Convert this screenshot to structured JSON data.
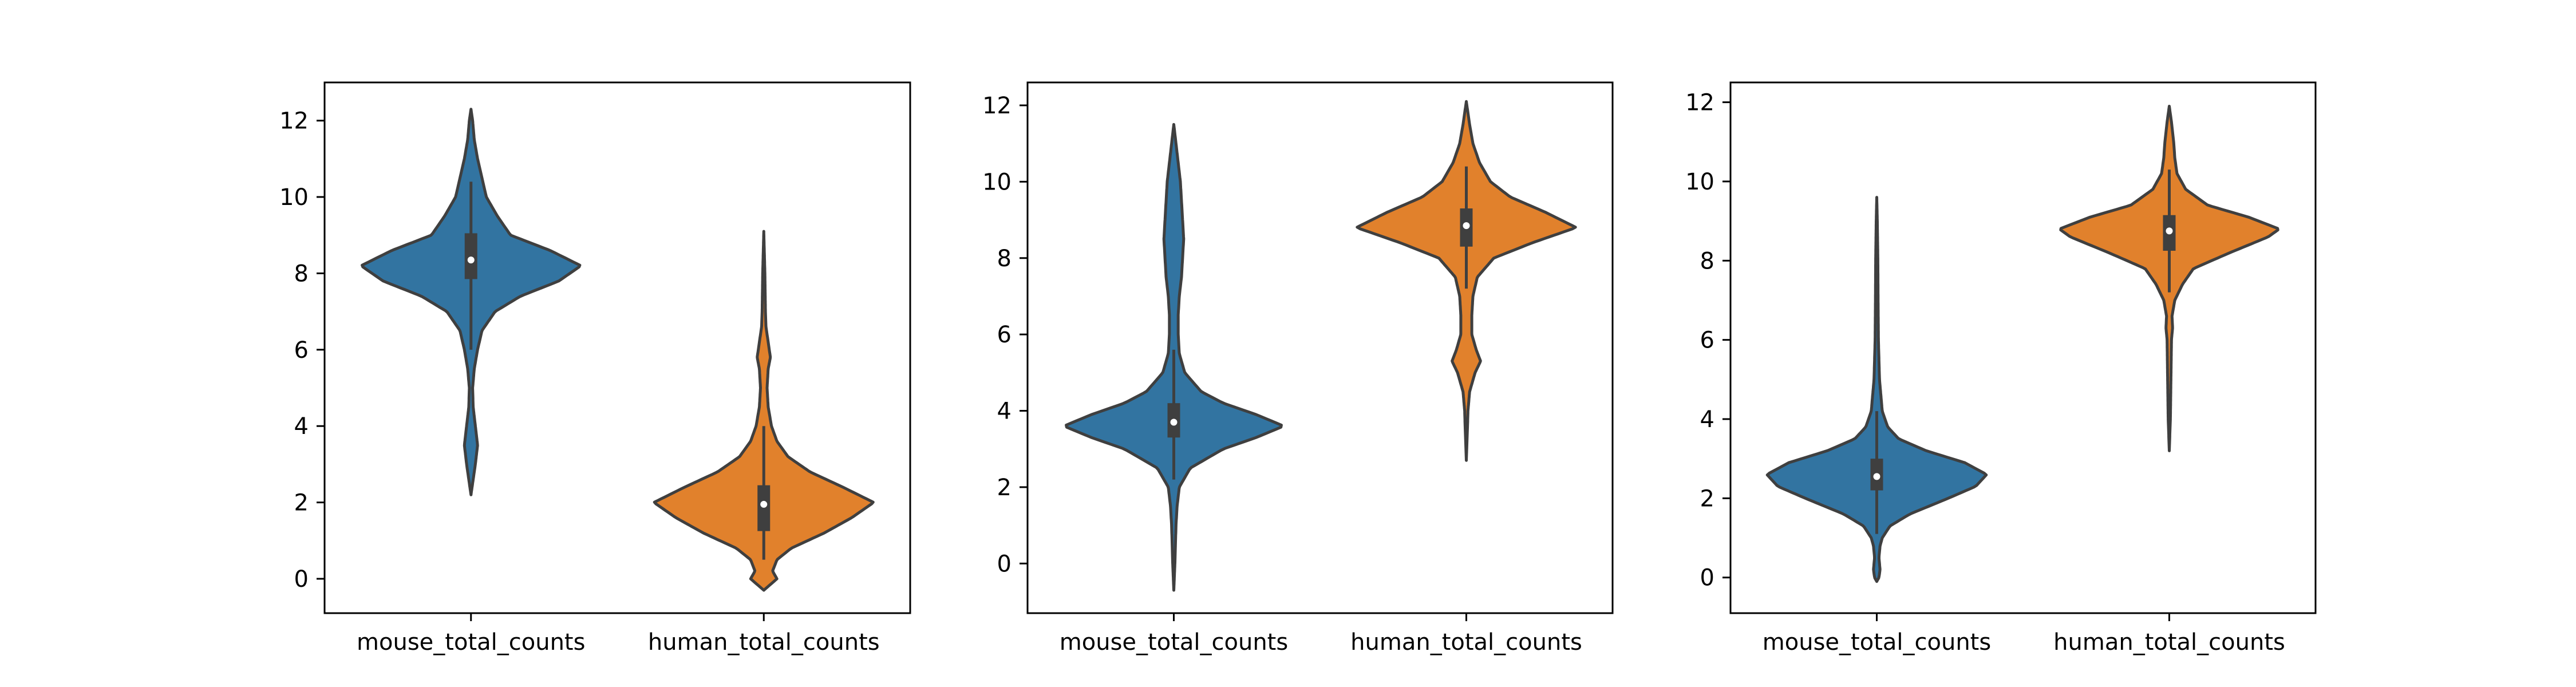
{
  "chart_data": [
    {
      "type": "violin",
      "categories": [
        "mouse_total_counts",
        "human_total_counts"
      ],
      "ylim": [
        -0.9,
        13.0
      ],
      "yticks": [
        0,
        2,
        4,
        6,
        8,
        10,
        12
      ],
      "ytick_labels": [
        "0",
        "2",
        "4",
        "6",
        "8",
        "10",
        "12"
      ],
      "grid": false,
      "series": [
        {
          "colour": "#3274a1",
          "range": [
            2.2,
            12.3
          ],
          "box": {
            "q1": 7.85,
            "median": 8.35,
            "q3": 9.05,
            "whisker_low": 6.0,
            "whisker_high": 10.4
          },
          "profile": [
            [
              2.2,
              0.0
            ],
            [
              2.6,
              0.02
            ],
            [
              3.0,
              0.04
            ],
            [
              3.5,
              0.06
            ],
            [
              4.0,
              0.04
            ],
            [
              4.5,
              0.02
            ],
            [
              5.0,
              0.015
            ],
            [
              5.5,
              0.03
            ],
            [
              6.0,
              0.06
            ],
            [
              6.5,
              0.1
            ],
            [
              7.0,
              0.22
            ],
            [
              7.4,
              0.45
            ],
            [
              7.8,
              0.8
            ],
            [
              8.2,
              1.0
            ],
            [
              8.6,
              0.72
            ],
            [
              9.0,
              0.36
            ],
            [
              9.5,
              0.24
            ],
            [
              10.0,
              0.14
            ],
            [
              10.5,
              0.1
            ],
            [
              11.0,
              0.06
            ],
            [
              11.5,
              0.03
            ],
            [
              12.0,
              0.015
            ],
            [
              12.3,
              0.0
            ]
          ]
        },
        {
          "colour": "#e1812c",
          "range": [
            -0.3,
            9.1
          ],
          "box": {
            "q1": 1.25,
            "median": 1.95,
            "q3": 2.45,
            "whisker_low": 0.5,
            "whisker_high": 4.0
          },
          "profile": [
            [
              -0.3,
              0.0
            ],
            [
              -0.2,
              0.04
            ],
            [
              0.0,
              0.12
            ],
            [
              0.2,
              0.08
            ],
            [
              0.5,
              0.12
            ],
            [
              0.8,
              0.25
            ],
            [
              1.2,
              0.55
            ],
            [
              1.6,
              0.8
            ],
            [
              2.0,
              1.0
            ],
            [
              2.4,
              0.72
            ],
            [
              2.8,
              0.42
            ],
            [
              3.2,
              0.22
            ],
            [
              3.6,
              0.12
            ],
            [
              4.0,
              0.07
            ],
            [
              4.5,
              0.04
            ],
            [
              5.0,
              0.03
            ],
            [
              5.5,
              0.04
            ],
            [
              5.8,
              0.06
            ],
            [
              6.2,
              0.04
            ],
            [
              6.6,
              0.02
            ],
            [
              7.0,
              0.015
            ],
            [
              8.0,
              0.01
            ],
            [
              9.1,
              0.0
            ]
          ]
        }
      ]
    },
    {
      "type": "violin",
      "categories": [
        "mouse_total_counts",
        "human_total_counts"
      ],
      "ylim": [
        -1.3,
        12.6
      ],
      "yticks": [
        0,
        2,
        4,
        6,
        8,
        10,
        12
      ],
      "ytick_labels": [
        "0",
        "2",
        "4",
        "6",
        "8",
        "10",
        "12"
      ],
      "grid": false,
      "series": [
        {
          "colour": "#3274a1",
          "range": [
            -0.7,
            11.5
          ],
          "box": {
            "q1": 3.3,
            "median": 3.7,
            "q3": 4.2,
            "whisker_low": 2.2,
            "whisker_high": 5.6
          },
          "profile": [
            [
              -0.7,
              0.0
            ],
            [
              0.0,
              0.01
            ],
            [
              0.5,
              0.015
            ],
            [
              1.0,
              0.02
            ],
            [
              1.5,
              0.03
            ],
            [
              2.0,
              0.05
            ],
            [
              2.5,
              0.15
            ],
            [
              3.0,
              0.45
            ],
            [
              3.3,
              0.75
            ],
            [
              3.6,
              1.0
            ],
            [
              3.9,
              0.75
            ],
            [
              4.2,
              0.45
            ],
            [
              4.5,
              0.25
            ],
            [
              5.0,
              0.1
            ],
            [
              5.5,
              0.05
            ],
            [
              6.0,
              0.04
            ],
            [
              6.5,
              0.04
            ],
            [
              7.0,
              0.05
            ],
            [
              7.5,
              0.07
            ],
            [
              8.0,
              0.08
            ],
            [
              8.5,
              0.09
            ],
            [
              9.0,
              0.08
            ],
            [
              9.5,
              0.07
            ],
            [
              10.0,
              0.06
            ],
            [
              10.5,
              0.04
            ],
            [
              11.0,
              0.02
            ],
            [
              11.5,
              0.0
            ]
          ]
        },
        {
          "colour": "#e1812c",
          "range": [
            2.7,
            12.1
          ],
          "box": {
            "q1": 8.3,
            "median": 8.85,
            "q3": 9.3,
            "whisker_low": 7.2,
            "whisker_high": 10.4
          },
          "profile": [
            [
              2.7,
              0.0
            ],
            [
              3.5,
              0.01
            ],
            [
              4.0,
              0.015
            ],
            [
              4.5,
              0.03
            ],
            [
              5.0,
              0.08
            ],
            [
              5.3,
              0.13
            ],
            [
              5.6,
              0.09
            ],
            [
              6.0,
              0.05
            ],
            [
              6.5,
              0.05
            ],
            [
              7.0,
              0.06
            ],
            [
              7.5,
              0.1
            ],
            [
              8.0,
              0.25
            ],
            [
              8.4,
              0.6
            ],
            [
              8.8,
              1.0
            ],
            [
              9.2,
              0.72
            ],
            [
              9.6,
              0.4
            ],
            [
              10.0,
              0.22
            ],
            [
              10.5,
              0.12
            ],
            [
              11.0,
              0.06
            ],
            [
              11.5,
              0.03
            ],
            [
              12.1,
              0.0
            ]
          ]
        }
      ]
    },
    {
      "type": "violin",
      "categories": [
        "mouse_total_counts",
        "human_total_counts"
      ],
      "ylim": [
        -0.9,
        12.5
      ],
      "yticks": [
        0,
        2,
        4,
        6,
        8,
        10,
        12
      ],
      "ytick_labels": [
        "0",
        "2",
        "4",
        "6",
        "8",
        "10",
        "12"
      ],
      "grid": false,
      "series": [
        {
          "colour": "#3274a1",
          "range": [
            -0.1,
            9.6
          ],
          "box": {
            "q1": 2.2,
            "median": 2.55,
            "q3": 3.0,
            "whisker_low": 1.1,
            "whisker_high": 4.2
          },
          "profile": [
            [
              -0.1,
              0.0
            ],
            [
              0.0,
              0.02
            ],
            [
              0.2,
              0.03
            ],
            [
              0.5,
              0.02
            ],
            [
              0.8,
              0.03
            ],
            [
              1.0,
              0.05
            ],
            [
              1.3,
              0.12
            ],
            [
              1.6,
              0.3
            ],
            [
              2.0,
              0.65
            ],
            [
              2.3,
              0.9
            ],
            [
              2.6,
              1.0
            ],
            [
              2.9,
              0.8
            ],
            [
              3.2,
              0.45
            ],
            [
              3.5,
              0.2
            ],
            [
              3.8,
              0.1
            ],
            [
              4.2,
              0.05
            ],
            [
              5.0,
              0.025
            ],
            [
              6.0,
              0.015
            ],
            [
              7.0,
              0.012
            ],
            [
              8.0,
              0.01
            ],
            [
              9.0,
              0.005
            ],
            [
              9.6,
              0.0
            ]
          ]
        },
        {
          "colour": "#e1812c",
          "range": [
            3.2,
            11.9
          ],
          "box": {
            "q1": 8.25,
            "median": 8.75,
            "q3": 9.15,
            "whisker_low": 7.2,
            "whisker_high": 10.3
          },
          "profile": [
            [
              3.2,
              0.0
            ],
            [
              4.0,
              0.01
            ],
            [
              5.0,
              0.015
            ],
            [
              6.0,
              0.02
            ],
            [
              6.3,
              0.03
            ],
            [
              6.6,
              0.025
            ],
            [
              7.0,
              0.05
            ],
            [
              7.4,
              0.12
            ],
            [
              7.8,
              0.22
            ],
            [
              8.2,
              0.55
            ],
            [
              8.6,
              0.9
            ],
            [
              8.8,
              1.0
            ],
            [
              9.1,
              0.72
            ],
            [
              9.4,
              0.35
            ],
            [
              9.8,
              0.15
            ],
            [
              10.2,
              0.07
            ],
            [
              10.6,
              0.05
            ],
            [
              11.0,
              0.04
            ],
            [
              11.5,
              0.02
            ],
            [
              11.9,
              0.0
            ]
          ]
        }
      ]
    }
  ]
}
